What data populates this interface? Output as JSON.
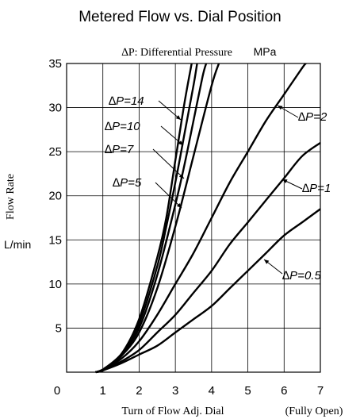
{
  "chart_data": {
    "type": "line",
    "title": "Metered Flow vs. Dial Position",
    "subtitle": "∆P: Differential Pressure",
    "subtitle_unit": "MPa",
    "xlabel": "Turn of Flow Adj. Dial",
    "xlabel_note": "(Fully Open)",
    "ylabel": "Flow Rate",
    "yunit": "L/min",
    "xlim": [
      0,
      7
    ],
    "ylim": [
      0,
      35
    ],
    "xticks": [
      0,
      1,
      2,
      3,
      4,
      5,
      6,
      7
    ],
    "yticks": [
      5,
      10,
      15,
      20,
      25,
      30,
      35
    ],
    "grid": true,
    "line_color": "#000000",
    "series": [
      {
        "name": "∆P=14",
        "label": "∆P=14",
        "points": [
          [
            0.8,
            0
          ],
          [
            1.0,
            0.3
          ],
          [
            1.5,
            2.0
          ],
          [
            2.0,
            6.0
          ],
          [
            2.5,
            13.0
          ],
          [
            2.75,
            17.5
          ],
          [
            3.0,
            24.0
          ],
          [
            3.25,
            30.5
          ],
          [
            3.45,
            35.0
          ]
        ]
      },
      {
        "name": "∆P=10",
        "label": "∆P=10",
        "points": [
          [
            0.8,
            0
          ],
          [
            1.0,
            0.3
          ],
          [
            1.5,
            2.0
          ],
          [
            2.0,
            5.5
          ],
          [
            2.5,
            12.0
          ],
          [
            2.75,
            16.5
          ],
          [
            3.0,
            21.5
          ],
          [
            3.25,
            27.0
          ],
          [
            3.5,
            32.5
          ],
          [
            3.6,
            35.0
          ]
        ]
      },
      {
        "name": "∆P=7",
        "label": "∆P=7",
        "points": [
          [
            0.8,
            0
          ],
          [
            1.0,
            0.3
          ],
          [
            1.5,
            2.0
          ],
          [
            2.0,
            5.0
          ],
          [
            2.5,
            11.0
          ],
          [
            3.0,
            19.0
          ],
          [
            3.25,
            23.5
          ],
          [
            3.5,
            28.5
          ],
          [
            3.75,
            33.5
          ],
          [
            3.85,
            35.0
          ]
        ]
      },
      {
        "name": "∆P=5",
        "label": "∆P=5",
        "points": [
          [
            0.8,
            0
          ],
          [
            1.0,
            0.3
          ],
          [
            1.5,
            1.8
          ],
          [
            2.0,
            4.5
          ],
          [
            2.5,
            9.5
          ],
          [
            3.0,
            16.5
          ],
          [
            3.5,
            24.5
          ],
          [
            4.0,
            32.5
          ],
          [
            4.2,
            35.0
          ]
        ]
      },
      {
        "name": "∆P=2",
        "label": "∆P=2",
        "points": [
          [
            0.8,
            0
          ],
          [
            1.0,
            0.3
          ],
          [
            1.5,
            1.5
          ],
          [
            2.0,
            3.5
          ],
          [
            2.5,
            6.5
          ],
          [
            3.0,
            10.0
          ],
          [
            3.5,
            13.5
          ],
          [
            4.0,
            17.5
          ],
          [
            4.5,
            21.5
          ],
          [
            5.0,
            25.0
          ],
          [
            5.5,
            28.5
          ],
          [
            6.0,
            31.5
          ],
          [
            6.5,
            34.5
          ],
          [
            6.6,
            35.0
          ]
        ]
      },
      {
        "name": "∆P=1",
        "label": "∆P=1",
        "points": [
          [
            0.8,
            0
          ],
          [
            1.0,
            0.2
          ],
          [
            1.5,
            1.2
          ],
          [
            2.0,
            2.5
          ],
          [
            2.5,
            4.5
          ],
          [
            3.0,
            6.5
          ],
          [
            3.5,
            9.0
          ],
          [
            4.0,
            11.5
          ],
          [
            4.5,
            14.5
          ],
          [
            5.0,
            17.0
          ],
          [
            5.5,
            19.5
          ],
          [
            6.0,
            22.0
          ],
          [
            6.5,
            24.5
          ],
          [
            7.0,
            26.0
          ]
        ]
      },
      {
        "name": "∆P=0.5",
        "label": "∆P=0.5",
        "points": [
          [
            0.8,
            0
          ],
          [
            1.0,
            0.2
          ],
          [
            1.5,
            1.0
          ],
          [
            2.0,
            2.0
          ],
          [
            2.5,
            3.0
          ],
          [
            3.0,
            4.5
          ],
          [
            3.5,
            6.0
          ],
          [
            4.0,
            7.5
          ],
          [
            4.5,
            9.5
          ],
          [
            5.0,
            11.5
          ],
          [
            5.5,
            13.5
          ],
          [
            6.0,
            15.5
          ],
          [
            6.5,
            17.0
          ],
          [
            7.0,
            18.5
          ]
        ]
      }
    ],
    "annotations": [
      {
        "text": "∆P=14",
        "series": 0
      },
      {
        "text": "∆P=10",
        "series": 1
      },
      {
        "text": "∆P=7",
        "series": 2
      },
      {
        "text": "∆P=5",
        "series": 3
      },
      {
        "text": "∆P=2",
        "series": 4
      },
      {
        "text": "∆P=1",
        "series": 5
      },
      {
        "text": "∆P=0.5",
        "series": 6
      }
    ]
  }
}
